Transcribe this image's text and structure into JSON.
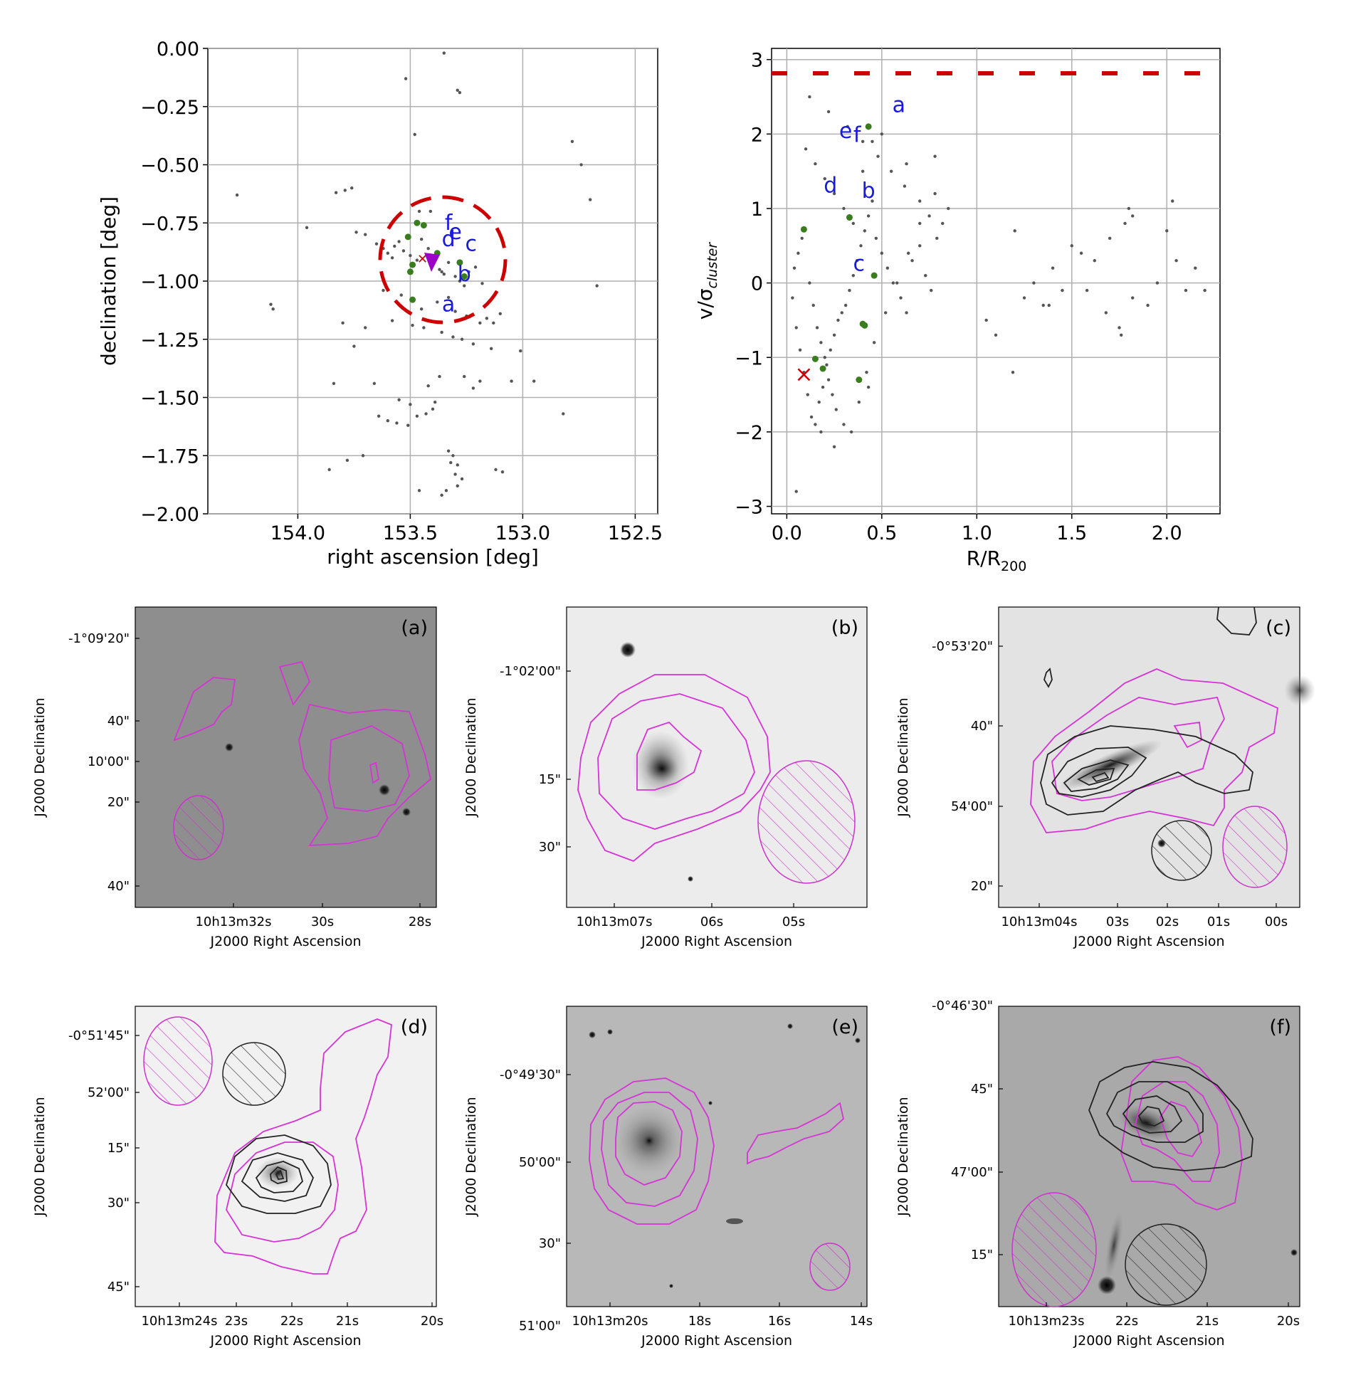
{
  "figure": {
    "panel_top_left": {
      "xlabel": "right ascension [deg]",
      "ylabel": "declination [deg]",
      "xticks": [
        "154.0",
        "153.5",
        "153.0",
        "152.5"
      ],
      "yticks": [
        "0.00",
        "−0.25",
        "−0.50",
        "−0.75",
        "−1.00",
        "−1.25",
        "−1.50",
        "−1.75",
        "−2.00"
      ],
      "labels": [
        "a",
        "b",
        "c",
        "d",
        "e",
        "f"
      ]
    },
    "panel_top_right": {
      "xlabel_main": "R/R",
      "xlabel_sub": "200",
      "ylabel_main": "v/σ",
      "ylabel_sub": "cluster",
      "xticks": [
        "0.0",
        "0.5",
        "1.0",
        "1.5",
        "2.0"
      ],
      "yticks": [
        "−3",
        "−2",
        "−1",
        "0",
        "1",
        "2",
        "3"
      ],
      "labels": [
        "a",
        "b",
        "c",
        "d",
        "e",
        "f"
      ]
    },
    "stamps": [
      {
        "letter": "(a)",
        "ra": [
          "10h13m32s",
          "30s",
          "28s"
        ],
        "dec": [
          "-1°09'20\"",
          "40\"",
          "10'00\"",
          "20\"",
          "40\""
        ]
      },
      {
        "letter": "(b)",
        "ra": [
          "10h13m07s",
          "06s",
          "05s"
        ],
        "dec": [
          "-1°02'00\"",
          "15\"",
          "30\""
        ]
      },
      {
        "letter": "(c)",
        "ra": [
          "10h13m04s",
          "03s",
          "02s",
          "01s",
          "00s"
        ],
        "dec": [
          "-0°53'20\"",
          "40\"",
          "54'00\"",
          "20\""
        ]
      },
      {
        "letter": "(d)",
        "ra": [
          "10h13m24s",
          "23s",
          "22s",
          "21s",
          "20s"
        ],
        "dec": [
          "-0°51'45\"",
          "52'00\"",
          "15\"",
          "30\"",
          "45\""
        ]
      },
      {
        "letter": "(e)",
        "ra": [
          "10h13m20s",
          "18s",
          "16s",
          "14s"
        ],
        "dec": [
          "-0°49'30\"",
          "50'00\"",
          "30\"",
          "51'00\""
        ]
      },
      {
        "letter": "(f)",
        "ra": [
          "10h13m23s",
          "22s",
          "21s",
          "20s"
        ],
        "dec": [
          "-0°46'30\"",
          "45\"",
          "47'00\"",
          "15\""
        ]
      }
    ],
    "stamp_xlabel": "J2000 Right Ascension",
    "stamp_ylabel": "J2000 Declination"
  },
  "chart_data": [
    {
      "type": "scatter",
      "title": "",
      "xlabel": "right ascension [deg]",
      "ylabel": "declination [deg]",
      "xlim": [
        154.4,
        152.4
      ],
      "ylim": [
        -2.0,
        0.0
      ],
      "grid": true,
      "series": [
        {
          "name": "cluster members",
          "color": "#555555",
          "x": [
            154.27,
            154.12,
            154.11,
            153.96,
            153.83,
            153.79,
            153.76,
            153.74,
            153.7,
            153.65,
            153.62,
            153.6,
            153.58,
            153.57,
            153.55,
            153.53,
            153.5,
            153.47,
            153.45,
            153.42,
            153.4,
            153.37,
            153.35,
            153.33,
            153.3,
            153.28,
            153.26,
            153.24,
            153.21,
            153.18,
            153.16,
            153.13,
            153.1,
            153.05,
            152.95,
            152.82,
            152.78,
            152.74,
            152.7,
            152.67,
            153.52,
            153.29,
            153.28,
            153.48,
            153.35,
            153.41,
            153.62,
            153.54,
            153.33,
            153.38,
            153.45,
            153.3,
            153.25,
            153.58,
            153.49,
            153.44,
            153.36,
            153.31,
            153.27,
            153.22,
            153.84,
            153.66,
            153.42,
            153.37,
            153.19,
            153.12,
            153.86,
            153.78,
            153.71,
            153.64,
            153.56,
            153.51,
            153.47,
            153.46,
            153.33,
            153.31,
            153.3,
            153.29,
            153.27,
            153.34,
            153.36,
            153.32,
            153.29,
            153.4,
            153.43,
            153.6,
            153.7,
            153.75,
            153.8,
            153.55,
            153.5,
            153.39,
            153.26,
            153.22,
            153.19,
            153.14,
            153.09,
            153.01,
            153.46,
            153.36
          ],
          "y": [
            -0.63,
            -1.1,
            -1.12,
            -0.77,
            -0.62,
            -0.61,
            -0.6,
            -0.79,
            -0.8,
            -0.84,
            -0.86,
            -0.88,
            -0.9,
            -0.85,
            -0.83,
            -0.87,
            -0.89,
            -0.91,
            -0.82,
            -0.86,
            -0.93,
            -0.95,
            -0.97,
            -0.92,
            -0.98,
            -1.0,
            -1.02,
            -0.96,
            -0.94,
            -1.01,
            -1.16,
            -1.18,
            -1.14,
            -1.43,
            -1.43,
            -1.57,
            -0.4,
            -0.5,
            -0.65,
            -1.02,
            -0.13,
            -0.18,
            -0.19,
            -0.37,
            -0.02,
            -0.7,
            -1.04,
            -1.06,
            -1.07,
            -1.09,
            -1.12,
            -1.13,
            -1.15,
            -1.17,
            -1.19,
            -1.2,
            -1.22,
            -1.24,
            -1.25,
            -1.27,
            -1.44,
            -1.44,
            -1.45,
            -1.41,
            -1.43,
            -1.81,
            -1.81,
            -1.77,
            -1.75,
            -1.58,
            -1.61,
            -1.62,
            -1.58,
            -1.9,
            -1.73,
            -1.75,
            -1.83,
            -1.88,
            -1.85,
            -1.9,
            -1.92,
            -1.78,
            -1.79,
            -1.55,
            -1.57,
            -1.6,
            -1.2,
            -1.28,
            -1.18,
            -1.51,
            -1.53,
            -1.52,
            -1.41,
            -1.46,
            -1.18,
            -1.29,
            -1.82,
            -1.3,
            -0.7,
            -0.96
          ]
        },
        {
          "name": "highlighted galaxies",
          "color": "#3a7d1e",
          "x": [
            153.47,
            153.44,
            153.51,
            153.49,
            153.5,
            153.38,
            153.28,
            153.26,
            153.49
          ],
          "y": [
            -0.75,
            -0.76,
            -0.81,
            -0.93,
            -0.96,
            -0.88,
            -0.92,
            -0.98,
            -1.08
          ]
        },
        {
          "name": "labels",
          "x": [
            153.33,
            153.26,
            153.23,
            153.33,
            153.3,
            153.33
          ],
          "y": [
            -1.13,
            -1.0,
            -0.87,
            -0.85,
            -0.82,
            -0.78
          ],
          "text": [
            "a",
            "b",
            "c",
            "d",
            "e",
            "f"
          ]
        },
        {
          "name": "cluster centre (x)",
          "color": "#cc0000",
          "x": [
            153.45
          ],
          "y": [
            -0.9
          ]
        },
        {
          "name": "centre (triangle)",
          "color": "#aa00cc",
          "x": [
            153.41
          ],
          "y": [
            -0.92
          ]
        },
        {
          "name": "R200 circle",
          "color": "#cc0000",
          "cx": 153.4,
          "cy": -0.92,
          "r": 0.27,
          "style": "dashed"
        }
      ]
    },
    {
      "type": "scatter",
      "title": "",
      "xlabel": "R/R200",
      "ylabel": "v/σcluster",
      "xlim": [
        -0.08,
        2.28
      ],
      "ylim": [
        -3.1,
        3.15
      ],
      "grid": true,
      "hline": {
        "y": 3.0,
        "color": "#cc0000",
        "style": "dashed"
      },
      "series": [
        {
          "name": "cluster members",
          "color": "#555555",
          "x": [
            0.03,
            0.05,
            0.07,
            0.09,
            0.11,
            0.13,
            0.15,
            0.17,
            0.19,
            0.21,
            0.23,
            0.25,
            0.27,
            0.29,
            0.31,
            0.33,
            0.35,
            0.37,
            0.39,
            0.41,
            0.43,
            0.45,
            0.47,
            0.5,
            0.53,
            0.56,
            0.6,
            0.63,
            0.66,
            0.7,
            0.73,
            0.76,
            0.79,
            0.82,
            0.85,
            0.04,
            0.06,
            0.08,
            0.12,
            0.14,
            0.16,
            0.18,
            0.2,
            0.22,
            0.24,
            0.26,
            0.3,
            0.34,
            0.38,
            0.42,
            0.46,
            0.52,
            0.58,
            0.64,
            0.7,
            0.78,
            0.1,
            0.15,
            0.2,
            0.25,
            0.3,
            0.35,
            0.4,
            0.45,
            0.5,
            1.05,
            1.1,
            1.2,
            1.25,
            1.3,
            1.35,
            1.4,
            1.45,
            1.5,
            1.55,
            1.58,
            1.62,
            1.68,
            1.7,
            1.75,
            1.78,
            1.8,
            1.82,
            1.9,
            1.95,
            2.0,
            2.05,
            2.1,
            2.15,
            2.2,
            0.18,
            0.25,
            0.43,
            0.63,
            0.78,
            1.19,
            1.38,
            1.76,
            2.03,
            1.82,
            0.12,
            0.22,
            0.32,
            0.4,
            0.48,
            0.55,
            0.62,
            0.7,
            0.75,
            0.05
          ],
          "y": [
            -0.2,
            -0.6,
            -0.9,
            -1.2,
            -1.5,
            -1.8,
            -1.9,
            -1.6,
            -1.4,
            -1.1,
            -0.9,
            -0.7,
            -0.5,
            -0.4,
            -0.3,
            -0.1,
            0.1,
            0.3,
            0.5,
            0.7,
            0.9,
            1.1,
            0.6,
            0.4,
            0.2,
            0.0,
            -0.2,
            -0.4,
            0.3,
            0.5,
            0.1,
            -0.1,
            0.6,
            0.8,
            1.0,
            0.2,
            0.4,
            0.6,
            0.0,
            -0.3,
            -0.6,
            -0.8,
            -1.0,
            -1.3,
            -1.5,
            -1.7,
            -1.9,
            -2.0,
            -1.6,
            -1.2,
            -0.8,
            -0.4,
            0.0,
            0.4,
            0.8,
            1.2,
            1.8,
            1.6,
            1.4,
            1.2,
            1.0,
            0.8,
            1.5,
            1.9,
            2.0,
            -0.5,
            -0.7,
            0.7,
            -0.2,
            0.0,
            -0.3,
            0.2,
            -0.1,
            0.5,
            0.4,
            -0.1,
            0.3,
            -0.4,
            0.6,
            -0.6,
            0.8,
            1.0,
            0.9,
            -0.3,
            0.0,
            0.7,
            0.3,
            -0.1,
            0.2,
            -0.1,
            -2.0,
            -2.2,
            -1.4,
            1.6,
            1.7,
            -1.2,
            -0.3,
            -0.7,
            1.1,
            -0.2,
            2.5,
            2.3,
            2.1,
            1.9,
            1.7,
            1.5,
            1.3,
            1.1,
            0.9,
            -2.8
          ]
        },
        {
          "name": "highlighted galaxies",
          "color": "#3a7d1e",
          "x": [
            0.43,
            0.33,
            0.09,
            0.46,
            0.4,
            0.41,
            0.15,
            0.19,
            0.38
          ],
          "y": [
            2.1,
            0.88,
            0.72,
            0.1,
            -0.55,
            -0.57,
            -1.02,
            -1.15,
            -1.3
          ]
        },
        {
          "name": "labels",
          "x": [
            0.59,
            0.43,
            0.38,
            0.23,
            0.31,
            0.37
          ],
          "y": [
            2.4,
            1.25,
            0.27,
            1.32,
            2.05,
            2.0
          ],
          "text": [
            "a",
            "b",
            "c",
            "d",
            "e",
            "f"
          ]
        },
        {
          "name": "cluster centre (x)",
          "color": "#cc0000",
          "x": [
            0.09
          ],
          "y": [
            -1.23
          ]
        }
      ]
    }
  ]
}
